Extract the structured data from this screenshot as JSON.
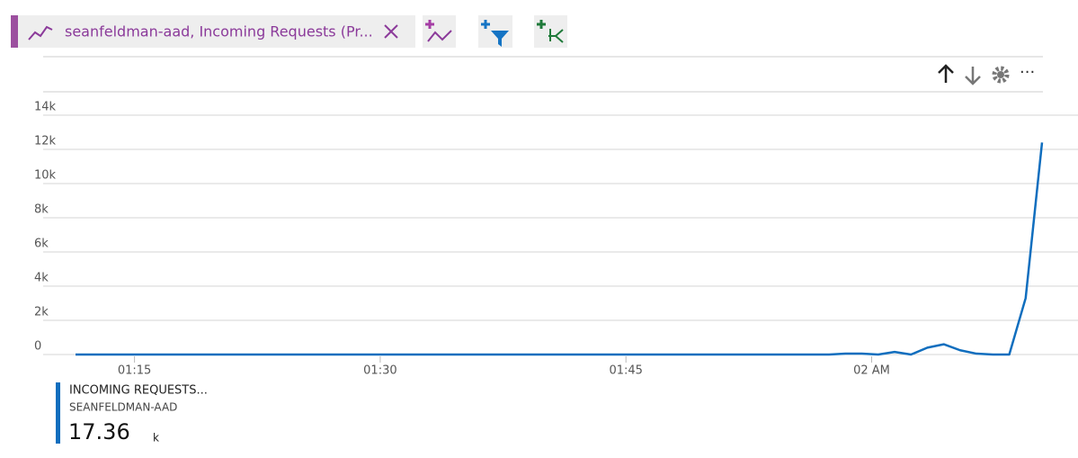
{
  "tab_title": "seanfeldman-aad, Incoming Requests (Pr...",
  "legend_metric": "INCOMING REQUESTS...",
  "legend_resource": "SEANFELDMAN-AAD",
  "legend_value": "17.36",
  "legend_unit": "k",
  "chart_data": {
    "type": "line",
    "x": [
      11.4,
      12.4,
      13.4,
      14.4,
      15.4,
      16.4,
      17.4,
      18.4,
      19.4,
      20.4,
      21.4,
      22.4,
      23.4,
      24.4,
      25.4,
      26.4,
      27.4,
      28.4,
      29.4,
      30.4,
      31.4,
      32.4,
      33.4,
      34.4,
      35.4,
      36.4,
      37.4,
      38.4,
      39.4,
      40.4,
      41.4,
      42.4,
      43.4,
      44.4,
      45.4,
      46.4,
      47.4,
      48.4,
      49.4,
      50.4,
      51.4,
      52.4,
      53.4,
      54.4,
      55.4,
      56.4,
      57.4,
      58.4,
      59.4,
      60.4,
      61.4,
      62.4,
      63.4,
      64.4,
      65.4,
      66.4,
      67.4,
      68.4,
      69.4,
      70.4
    ],
    "series": [
      {
        "name": "INCOMING REQUESTS...",
        "color": "#106ebe",
        "values": [
          0,
          0,
          0,
          0,
          0,
          0,
          0,
          0,
          0,
          0,
          0,
          0,
          0,
          0,
          0,
          0,
          0,
          0,
          0,
          0,
          0,
          0,
          0,
          0,
          0,
          0,
          0,
          0,
          0,
          0,
          0,
          0,
          0,
          0,
          0,
          0,
          0,
          0,
          0,
          0,
          0,
          0,
          0,
          0,
          0,
          0,
          0,
          50,
          50,
          0,
          150,
          0,
          400,
          600,
          250,
          50,
          0,
          0,
          3300,
          12400
        ]
      }
    ],
    "xlim": [
      11.4,
      70.4
    ],
    "xticks": [
      {
        "value": 15,
        "label": "01:15"
      },
      {
        "value": 30,
        "label": "01:30"
      },
      {
        "value": 45,
        "label": "01:45"
      },
      {
        "value": 60,
        "label": "02 AM"
      }
    ],
    "ylim": [
      0,
      14000
    ],
    "yticks": [
      0,
      {
        "value": 2000,
        "label": "2k"
      },
      {
        "value": 4000,
        "label": "4k"
      },
      {
        "value": 6000,
        "label": "6k"
      },
      {
        "value": 8000,
        "label": "8k"
      },
      {
        "value": 10000,
        "label": "10k"
      },
      {
        "value": 12000,
        "label": "12k"
      },
      {
        "value": 14000,
        "label": "14k"
      }
    ],
    "grid": true
  }
}
